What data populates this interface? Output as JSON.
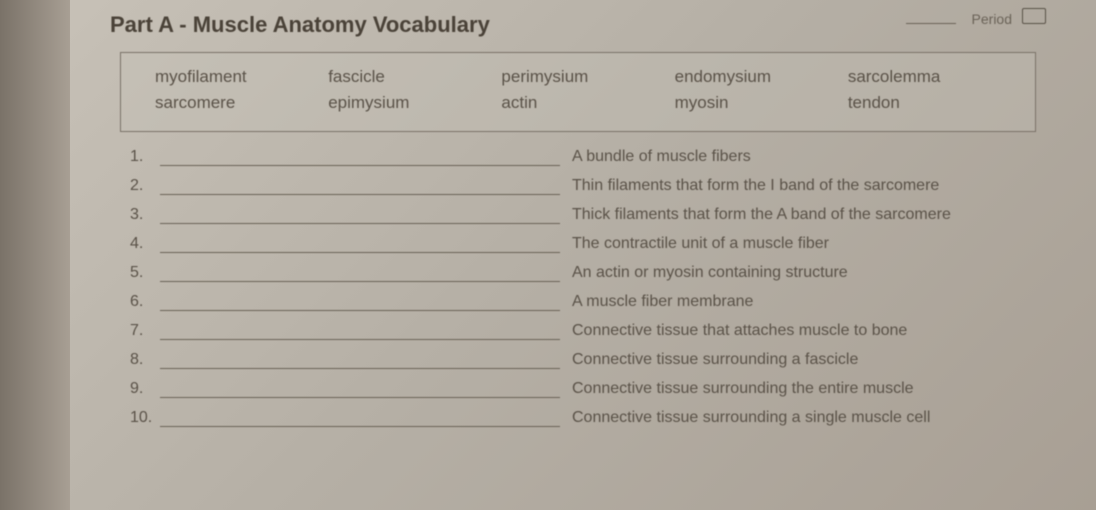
{
  "header": {
    "period_label": "Period"
  },
  "title": "Part A - Muscle Anatomy Vocabulary",
  "word_bank": {
    "row1": [
      "myofilament",
      "fascicle",
      "perimysium",
      "endomysium",
      "sarcolemma"
    ],
    "row2": [
      "sarcomere",
      "epimysium",
      "actin",
      "myosin",
      "tendon"
    ]
  },
  "questions": [
    {
      "num": "1.",
      "def": "A bundle of muscle fibers"
    },
    {
      "num": "2.",
      "def": "Thin filaments that form the I band of the sarcomere"
    },
    {
      "num": "3.",
      "def": "Thick filaments that form the A band of the sarcomere"
    },
    {
      "num": "4.",
      "def": "The contractile unit of a muscle fiber"
    },
    {
      "num": "5.",
      "def": "An actin or myosin containing structure"
    },
    {
      "num": "6.",
      "def": "A muscle fiber membrane"
    },
    {
      "num": "7.",
      "def": "Connective tissue that attaches muscle to bone"
    },
    {
      "num": "8.",
      "def": "Connective tissue surrounding a fascicle"
    },
    {
      "num": "9.",
      "def": "Connective tissue surrounding the entire muscle"
    },
    {
      "num": "10.",
      "def": "Connective tissue surrounding a single muscle cell"
    }
  ]
}
